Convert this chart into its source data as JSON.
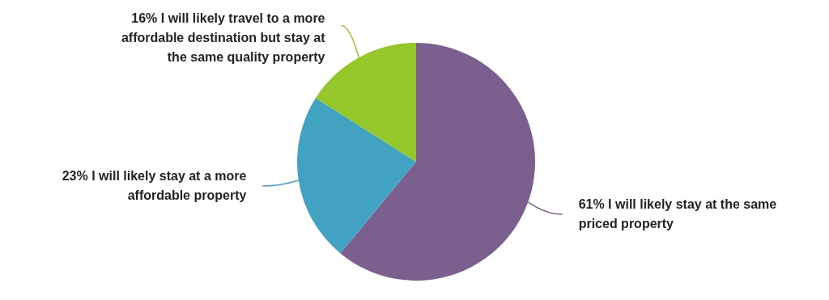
{
  "chart_data": {
    "type": "pie",
    "categories": [
      "61% I will likely stay at the same priced property",
      "23% I will likely stay at a more affordable property",
      "16% I will likely travel to a more affordable destination but stay at the same quality property"
    ],
    "values": [
      61,
      23,
      16
    ],
    "colors": [
      "#7b5f8f",
      "#42a2c2",
      "#95c72b"
    ]
  }
}
